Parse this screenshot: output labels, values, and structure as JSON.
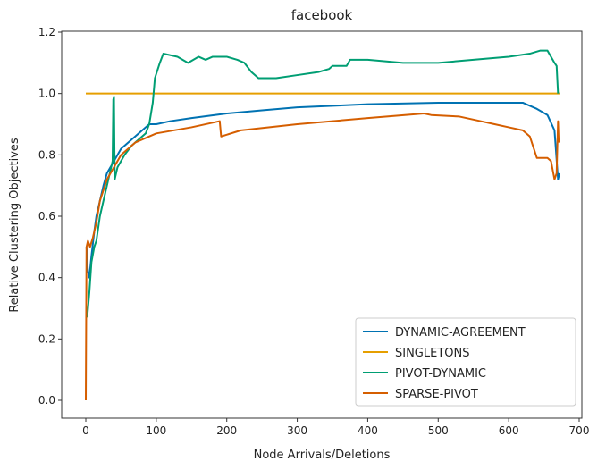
{
  "chart_data": {
    "type": "line",
    "title": "facebook",
    "xlabel": "Node Arrivals/Deletions",
    "ylabel": "Relative Clustering Objectives",
    "xlim": [
      -32,
      705
    ],
    "ylim": [
      -0.06,
      1.21
    ],
    "xticks": [
      0,
      100,
      200,
      300,
      400,
      500,
      600,
      700
    ],
    "yticks": [
      0.0,
      0.2,
      0.4,
      0.6,
      0.8,
      1.0,
      1.2
    ],
    "legend_position": "bottom-right",
    "grid": false,
    "series": [
      {
        "name": "DYNAMIC-AGREEMENT",
        "color": "#0072B2",
        "points": [
          [
            1,
            0.5
          ],
          [
            3,
            0.42
          ],
          [
            5,
            0.4
          ],
          [
            8,
            0.47
          ],
          [
            12,
            0.55
          ],
          [
            15,
            0.6
          ],
          [
            20,
            0.65
          ],
          [
            25,
            0.7
          ],
          [
            30,
            0.74
          ],
          [
            40,
            0.78
          ],
          [
            50,
            0.82
          ],
          [
            60,
            0.84
          ],
          [
            70,
            0.86
          ],
          [
            80,
            0.88
          ],
          [
            90,
            0.9
          ],
          [
            100,
            0.9
          ],
          [
            120,
            0.91
          ],
          [
            150,
            0.92
          ],
          [
            200,
            0.935
          ],
          [
            250,
            0.945
          ],
          [
            300,
            0.955
          ],
          [
            400,
            0.965
          ],
          [
            500,
            0.97
          ],
          [
            600,
            0.97
          ],
          [
            620,
            0.97
          ],
          [
            640,
            0.95
          ],
          [
            655,
            0.93
          ],
          [
            665,
            0.88
          ],
          [
            670,
            0.72
          ],
          [
            672,
            0.74
          ]
        ]
      },
      {
        "name": "SINGLETONS",
        "color": "#E69F00",
        "points": [
          [
            0,
            1.0
          ],
          [
            672,
            1.0
          ]
        ]
      },
      {
        "name": "PIVOT-DYNAMIC",
        "color": "#009E73",
        "points": [
          [
            2,
            0.27
          ],
          [
            5,
            0.35
          ],
          [
            8,
            0.45
          ],
          [
            12,
            0.5
          ],
          [
            15,
            0.52
          ],
          [
            20,
            0.6
          ],
          [
            25,
            0.65
          ],
          [
            30,
            0.7
          ],
          [
            35,
            0.75
          ],
          [
            38,
            0.78
          ],
          [
            39,
            0.98
          ],
          [
            40,
            0.99
          ],
          [
            41,
            0.72
          ],
          [
            45,
            0.76
          ],
          [
            55,
            0.8
          ],
          [
            65,
            0.83
          ],
          [
            75,
            0.85
          ],
          [
            85,
            0.87
          ],
          [
            90,
            0.9
          ],
          [
            95,
            0.97
          ],
          [
            98,
            1.05
          ],
          [
            105,
            1.1
          ],
          [
            110,
            1.13
          ],
          [
            130,
            1.12
          ],
          [
            145,
            1.1
          ],
          [
            160,
            1.12
          ],
          [
            170,
            1.11
          ],
          [
            180,
            1.12
          ],
          [
            200,
            1.12
          ],
          [
            215,
            1.11
          ],
          [
            225,
            1.1
          ],
          [
            235,
            1.07
          ],
          [
            245,
            1.05
          ],
          [
            270,
            1.05
          ],
          [
            300,
            1.06
          ],
          [
            330,
            1.07
          ],
          [
            345,
            1.08
          ],
          [
            350,
            1.09
          ],
          [
            370,
            1.09
          ],
          [
            375,
            1.11
          ],
          [
            400,
            1.11
          ],
          [
            450,
            1.1
          ],
          [
            500,
            1.1
          ],
          [
            550,
            1.11
          ],
          [
            600,
            1.12
          ],
          [
            630,
            1.13
          ],
          [
            645,
            1.14
          ],
          [
            655,
            1.14
          ],
          [
            660,
            1.12
          ],
          [
            665,
            1.1
          ],
          [
            668,
            1.09
          ],
          [
            670,
            1.0
          ]
        ]
      },
      {
        "name": "SPARSE-PIVOT",
        "color": "#D55E00",
        "points": [
          [
            0,
            0.0
          ],
          [
            1,
            0.5
          ],
          [
            3,
            0.52
          ],
          [
            6,
            0.5
          ],
          [
            10,
            0.53
          ],
          [
            15,
            0.58
          ],
          [
            20,
            0.65
          ],
          [
            30,
            0.72
          ],
          [
            40,
            0.76
          ],
          [
            50,
            0.8
          ],
          [
            70,
            0.84
          ],
          [
            100,
            0.87
          ],
          [
            150,
            0.89
          ],
          [
            190,
            0.91
          ],
          [
            192,
            0.86
          ],
          [
            220,
            0.88
          ],
          [
            300,
            0.9
          ],
          [
            400,
            0.92
          ],
          [
            480,
            0.935
          ],
          [
            490,
            0.93
          ],
          [
            530,
            0.925
          ],
          [
            560,
            0.91
          ],
          [
            580,
            0.9
          ],
          [
            600,
            0.89
          ],
          [
            620,
            0.88
          ],
          [
            630,
            0.86
          ],
          [
            640,
            0.79
          ],
          [
            655,
            0.79
          ],
          [
            660,
            0.78
          ],
          [
            665,
            0.72
          ],
          [
            668,
            0.74
          ],
          [
            670,
            0.91
          ],
          [
            671,
            0.84
          ]
        ]
      }
    ]
  }
}
